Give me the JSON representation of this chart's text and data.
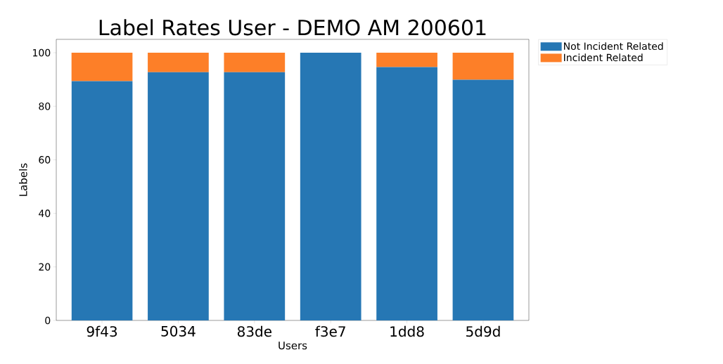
{
  "chart_data": {
    "type": "bar",
    "title": "Label Rates User - DEMO AM 200601",
    "xlabel": "Users",
    "ylabel": "Labels",
    "categories": [
      "9f43",
      "5034",
      "83de",
      "f3e7",
      "1dd8",
      "5d9d"
    ],
    "series": [
      {
        "name": "Not Incident Related",
        "color": "#2677b4",
        "values": [
          89.4,
          92.7,
          92.7,
          100,
          94.6,
          89.9
        ]
      },
      {
        "name": "Incident Related",
        "color": "#fd7f28",
        "values": [
          10.6,
          7.3,
          7.3,
          0,
          5.4,
          10.1
        ]
      }
    ],
    "stacked": true,
    "ylim": [
      0,
      105
    ],
    "yticks": [
      0,
      20,
      40,
      60,
      80,
      100
    ],
    "grid": false,
    "legend": "top right"
  }
}
